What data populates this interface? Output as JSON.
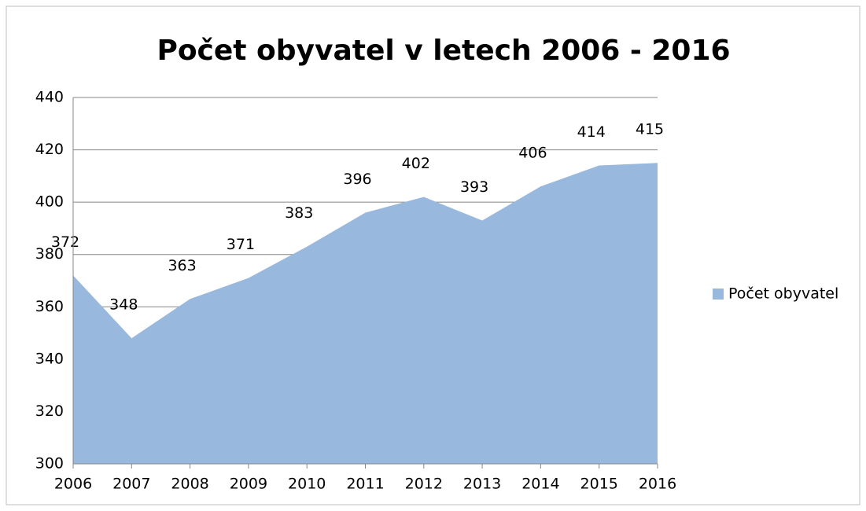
{
  "chart_data": {
    "type": "area",
    "title": "Počet obyvatel v letech 2006 - 2016",
    "categories": [
      "2006",
      "2007",
      "2008",
      "2009",
      "2010",
      "2011",
      "2012",
      "2013",
      "2014",
      "2015",
      "2016"
    ],
    "series": [
      {
        "name": "Počet obyvatel",
        "color": "#98b8de",
        "values": [
          372,
          348,
          363,
          371,
          383,
          396,
          402,
          393,
          406,
          414,
          415
        ]
      }
    ],
    "ylim": [
      300,
      440
    ],
    "yticks": [
      300,
      320,
      340,
      360,
      380,
      400,
      420,
      440
    ],
    "grid": true,
    "legend": "right",
    "data_labels": true
  }
}
